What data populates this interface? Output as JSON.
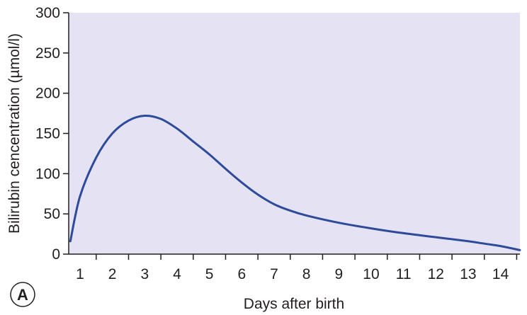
{
  "panel_label": "A",
  "colors": {
    "plot_background": "#e5e3f3",
    "line": "#2e4a9a",
    "axis": "#231f20"
  },
  "chart_data": {
    "type": "line",
    "title": "",
    "xlabel": "Days after birth",
    "ylabel": "Bilirubin cencentration (µmol/l)",
    "xlim": [
      0.65,
      14.6
    ],
    "ylim": [
      0,
      300
    ],
    "x_ticks": [
      1,
      2,
      3,
      4,
      5,
      6,
      7,
      8,
      9,
      10,
      11,
      12,
      13,
      14
    ],
    "y_ticks": [
      0,
      50,
      100,
      150,
      200,
      250,
      300
    ],
    "grid": false,
    "legend": "none",
    "series": [
      {
        "x": [
          0.7,
          1.0,
          1.5,
          2.0,
          2.5,
          3.0,
          3.5,
          4.0,
          4.5,
          5.0,
          5.5,
          6.0,
          6.5,
          7.0,
          7.5,
          8.0,
          9.0,
          10.0,
          11.0,
          12.0,
          13.0,
          13.5,
          14.0,
          14.6
        ],
        "y": [
          16,
          72,
          120,
          150,
          166,
          172,
          168,
          156,
          140,
          124,
          106,
          89,
          74,
          62,
          54,
          48,
          39,
          32,
          26,
          21,
          16,
          13,
          10,
          5
        ]
      }
    ]
  }
}
